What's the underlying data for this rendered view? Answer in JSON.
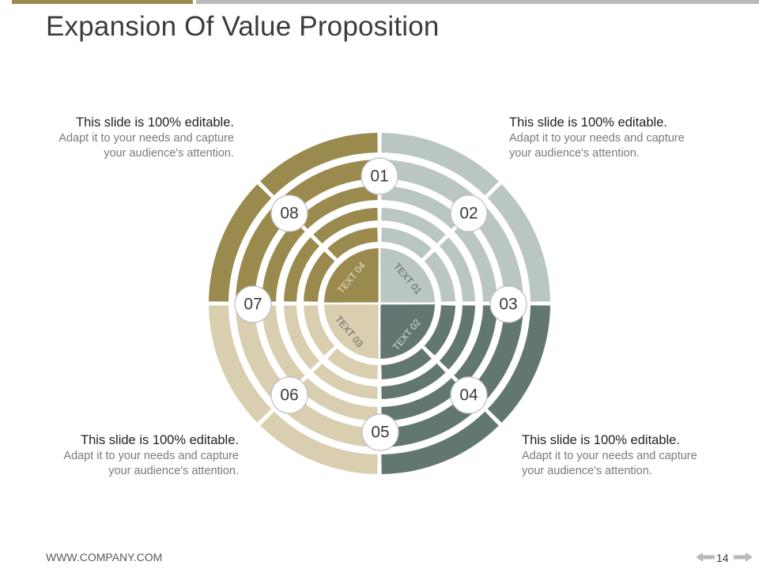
{
  "title": "Expansion Of Value Proposition",
  "colors": {
    "olive": "#9a8a4e",
    "light_gray_green": "#bac6c2",
    "dark_slate": "#627772",
    "beige": "#d9cfb0",
    "top_bar_gray": "#b9b9b9"
  },
  "quadrant_labels": [
    "TEXT 01",
    "TEXT 02",
    "TEXT 03",
    "TEXT 04"
  ],
  "markers": [
    "01",
    "02",
    "03",
    "04",
    "05",
    "06",
    "07",
    "08"
  ],
  "text_blocks": {
    "top_left": {
      "heading": "This slide is 100% editable.",
      "body": "Adapt it to your needs and capture your audience's attention."
    },
    "top_right": {
      "heading": "This slide is 100% editable.",
      "body": "Adapt it to your needs and capture your audience's attention."
    },
    "bottom_left": {
      "heading": "This slide is 100% editable.",
      "body": "Adapt it to your needs and capture your audience's attention."
    },
    "bottom_right": {
      "heading": "This slide is 100% editable.",
      "body": "Adapt it to your needs and capture your audience's attention."
    }
  },
  "footer": {
    "url": "WWW.COMPANY.COM",
    "page_number": "14"
  },
  "icons": {
    "prev": "arrow-left-icon",
    "next": "arrow-right-icon"
  }
}
